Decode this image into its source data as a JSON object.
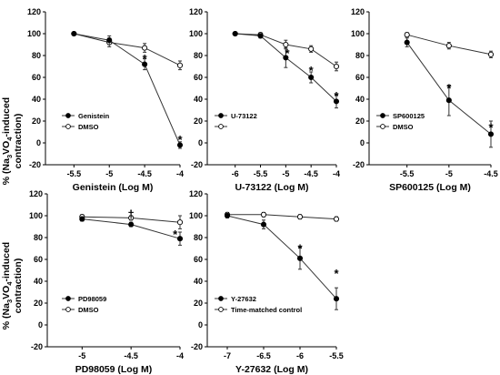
{
  "ylabel_prefix": "% (Na",
  "ylabel_sub3": "3",
  "ylabel_mid": "VO",
  "ylabel_sub4": "4",
  "ylabel_suffix": "-induced",
  "ylabel_line2": "contraction)",
  "chart_data": [
    {
      "type": "line",
      "xlabel": "Genistein (Log M)",
      "ylabel": "% (Na3VO4-induced contraction)",
      "xlim": [
        -5.8,
        -4
      ],
      "ylim": [
        -20,
        120
      ],
      "yticks": [
        -20,
        0,
        20,
        40,
        60,
        80,
        100,
        120
      ],
      "xticks": [
        -5.5,
        -5,
        -4.5,
        -4
      ],
      "xtick_labels": [
        "-5.5",
        "-5",
        "-4.5",
        "-4"
      ],
      "legend_position": "lower-left",
      "series": [
        {
          "name": "Genistein",
          "marker": "filled",
          "x": [
            -5.5,
            -5,
            -4.5,
            -4
          ],
          "y": [
            100,
            94,
            72,
            -2
          ],
          "err": [
            0,
            4,
            5,
            3
          ]
        },
        {
          "name": "DMSO",
          "marker": "open",
          "x": [
            -5.5,
            -5,
            -4.5,
            -4
          ],
          "y": [
            100,
            92,
            87,
            71
          ],
          "err": [
            0,
            4,
            4,
            4
          ]
        }
      ],
      "annotations": [
        {
          "text": "*",
          "x": -4.5,
          "y": 80
        },
        {
          "text": "*",
          "x": -4,
          "y": 6
        }
      ]
    },
    {
      "type": "line",
      "xlabel": "U-73122 (Log M)",
      "ylabel": "",
      "xlim": [
        -6.3,
        -4
      ],
      "ylim": [
        -20,
        120
      ],
      "yticks": [
        -20,
        0,
        20,
        40,
        60,
        80,
        100,
        120
      ],
      "xticks": [
        -6,
        -5.5,
        -5,
        -4.5,
        -4
      ],
      "xtick_labels": [
        "-6",
        "-5.5",
        "-5",
        "-4.5",
        "-4"
      ],
      "legend_position": "lower-left",
      "series": [
        {
          "name": "U-73122",
          "marker": "filled",
          "x": [
            -6,
            -5.5,
            -5,
            -4.5,
            -4
          ],
          "y": [
            100,
            98,
            78,
            60,
            38
          ],
          "err": [
            0,
            2,
            9,
            5,
            6
          ]
        },
        {
          "name": "",
          "marker": "open",
          "x": [
            -6,
            -5.5,
            -5,
            -4.5,
            -4
          ],
          "y": [
            100,
            99,
            90,
            86,
            70
          ],
          "err": [
            0,
            2,
            4,
            3,
            4
          ]
        }
      ],
      "annotations": [
        {
          "text": "*",
          "x": -4.97,
          "y": 85
        },
        {
          "text": "*",
          "x": -4.5,
          "y": 69
        },
        {
          "text": "*",
          "x": -4,
          "y": 46
        }
      ]
    },
    {
      "type": "line",
      "xlabel": "SP600125 (Log M)",
      "ylabel": "",
      "xlim": [
        -5.8,
        -4.5
      ],
      "ylim": [
        -20,
        120
      ],
      "yticks": [
        -20,
        0,
        20,
        40,
        60,
        80,
        100,
        120
      ],
      "xticks": [
        -5.5,
        -5,
        -4.5
      ],
      "xtick_labels": [
        "-5.5",
        "-5",
        "-4.5"
      ],
      "legend_position": "lower-left",
      "series": [
        {
          "name": "SP600125",
          "marker": "filled",
          "x": [
            -5.5,
            -5,
            -4.5
          ],
          "y": [
            92,
            39,
            8
          ],
          "err": [
            4,
            14,
            12
          ]
        },
        {
          "name": "DMSO",
          "marker": "open",
          "x": [
            -5.5,
            -5,
            -4.5
          ],
          "y": [
            99,
            89,
            81
          ],
          "err": [
            2,
            3,
            3
          ]
        }
      ],
      "annotations": [
        {
          "text": "*",
          "x": -5,
          "y": 53
        },
        {
          "text": "*",
          "x": -4.5,
          "y": 17
        }
      ]
    },
    {
      "type": "line",
      "xlabel": "PD98059 (Log M)",
      "ylabel": "% (Na3VO4-induced contraction)",
      "xlim": [
        -5.3,
        -4
      ],
      "ylim": [
        -20,
        120
      ],
      "yticks": [
        -20,
        0,
        20,
        40,
        60,
        80,
        100,
        120
      ],
      "xticks": [
        -5,
        -4.5,
        -4
      ],
      "xtick_labels": [
        "-5",
        "-4.5",
        "-4"
      ],
      "legend_position": "lower-left",
      "series": [
        {
          "name": "PD98059",
          "marker": "filled",
          "x": [
            -5,
            -4.5,
            -4
          ],
          "y": [
            97,
            92,
            79
          ],
          "err": [
            2,
            2,
            6
          ]
        },
        {
          "name": "DMSO",
          "marker": "open",
          "x": [
            -5,
            -4.5,
            -4
          ],
          "y": [
            99,
            98,
            94
          ],
          "err": [
            2,
            2,
            6
          ]
        }
      ],
      "annotations": [
        {
          "text": "†",
          "x": -4.5,
          "y": 104
        },
        {
          "text": "*",
          "x": -4.05,
          "y": 86
        }
      ]
    },
    {
      "type": "line",
      "xlabel": "Y-27632 (Log M)",
      "ylabel": "",
      "xlim": [
        -7.2,
        -5.5
      ],
      "ylim": [
        -20,
        120
      ],
      "yticks": [
        -20,
        0,
        20,
        40,
        60,
        80,
        100,
        120
      ],
      "xticks": [
        -7,
        -6.5,
        -6,
        -5.5
      ],
      "xtick_labels": [
        "-7",
        "-6.5",
        "-6",
        "-5.5"
      ],
      "legend_position": "lower-left",
      "series": [
        {
          "name": "Y-27632",
          "marker": "filled",
          "x": [
            -7,
            -6.5,
            -6,
            -5.5
          ],
          "y": [
            100,
            92,
            61,
            24
          ],
          "err": [
            2,
            4,
            10,
            10
          ]
        },
        {
          "name": "Time-matched control",
          "marker": "open",
          "x": [
            -7,
            -6.5,
            -6,
            -5.5
          ],
          "y": [
            101,
            101,
            99,
            97
          ],
          "err": [
            2,
            2,
            2,
            2
          ]
        }
      ],
      "annotations": [
        {
          "text": "*",
          "x": -6,
          "y": 73
        },
        {
          "text": "*",
          "x": -5.5,
          "y": 50
        }
      ]
    }
  ]
}
